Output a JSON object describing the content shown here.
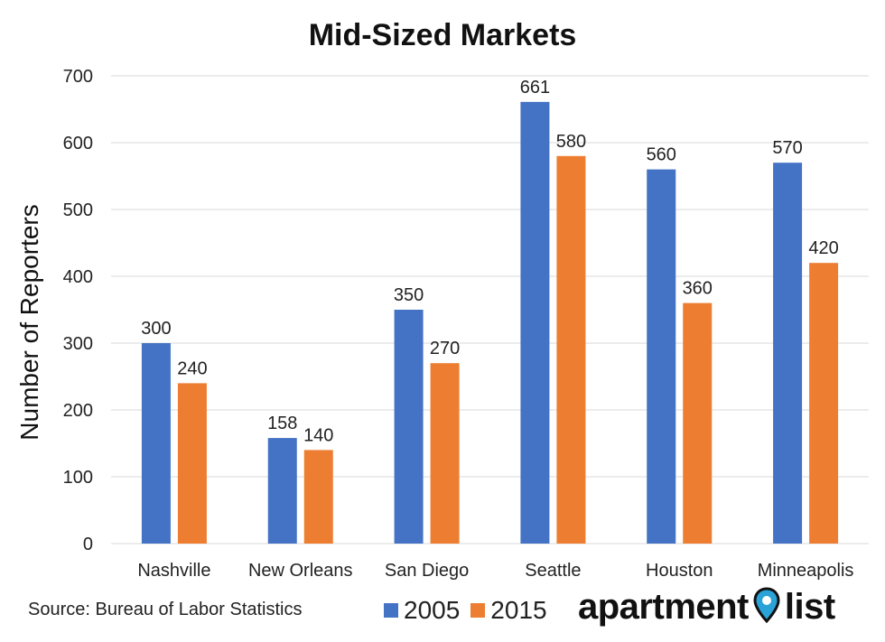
{
  "chart_data": {
    "type": "bar",
    "title": "Mid-Sized Markets",
    "ylabel": "Number of Reporters",
    "xlabel": "",
    "ylim": [
      0,
      700
    ],
    "yticks": [
      "0",
      "100",
      "200",
      "300",
      "400",
      "500",
      "600",
      "700"
    ],
    "ytick_values": [
      0,
      100,
      200,
      300,
      400,
      500,
      600,
      700
    ],
    "grid": true,
    "categories": [
      "Nashville",
      "New Orleans",
      "San Diego",
      "Seattle",
      "Houston",
      "Minneapolis"
    ],
    "series": [
      {
        "name": "2005",
        "color": "#4472C4",
        "values": [
          300,
          158,
          350,
          661,
          560,
          570
        ]
      },
      {
        "name": "2015",
        "color": "#ED7D31",
        "values": [
          240,
          140,
          270,
          580,
          360,
          420
        ]
      }
    ],
    "legend_position": "bottom"
  },
  "footer": {
    "source": "Source: Bureau of Labor Statistics",
    "brand_left": "apartment",
    "brand_right": "list",
    "brand_icon": "location-pin-icon",
    "brand_icon_color": "#2AA3D8"
  }
}
